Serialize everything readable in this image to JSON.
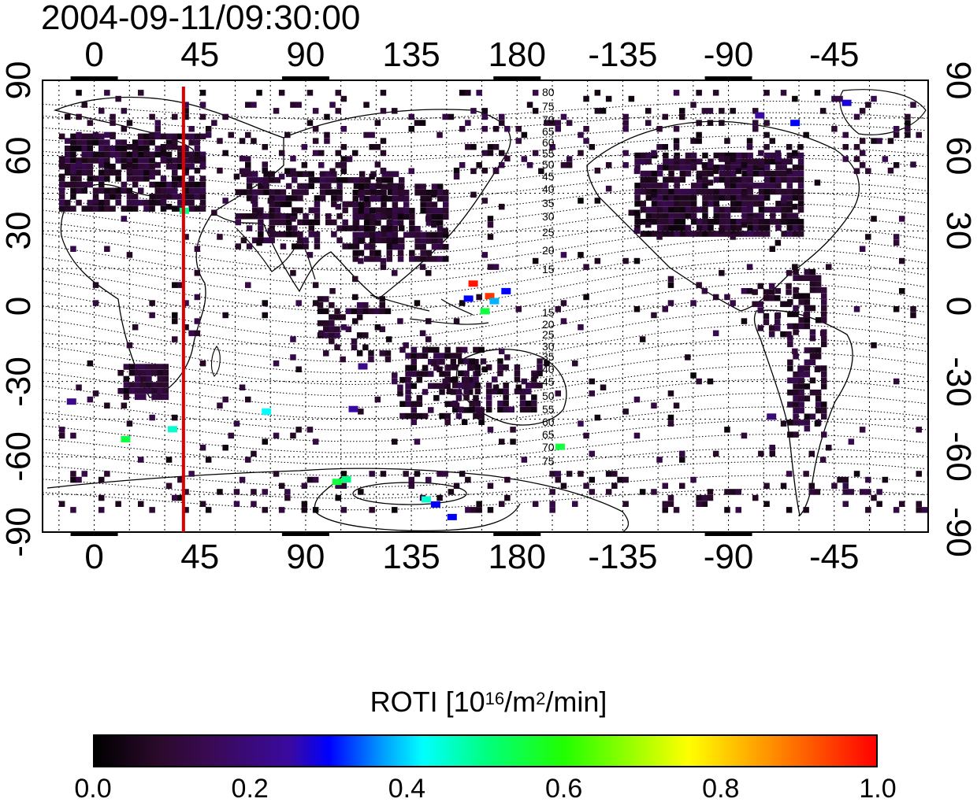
{
  "title": "2004-09-11/09:30:00",
  "chart_data": {
    "type": "heatmap",
    "title": "2004-09-11/09:30:00",
    "x_axis": {
      "label": "",
      "ticks": [
        "0",
        "45",
        "90",
        "135",
        "180",
        "-135",
        "-90",
        "-45"
      ],
      "tick_values": [
        0,
        45,
        90,
        135,
        180,
        225,
        270,
        315
      ],
      "range": [
        -22,
        355
      ]
    },
    "y_axis": {
      "label": "",
      "ticks": [
        "90",
        "60",
        "30",
        "0",
        "-30",
        "-60",
        "-90"
      ],
      "tick_values": [
        90,
        60,
        30,
        0,
        -30,
        -60,
        -90
      ],
      "range": [
        -90,
        90
      ]
    },
    "grid": true,
    "meridian_marker": {
      "longitude": 38,
      "color": "#dd0000"
    },
    "contour_labels": [
      "80",
      "75",
      "70",
      "65",
      "60",
      "55",
      "50",
      "45",
      "40",
      "35",
      "30",
      "25",
      "20",
      "15",
      "15",
      "20",
      "25",
      "30",
      "35",
      "40",
      "45",
      "50",
      "55",
      "60",
      "65",
      "70",
      "75"
    ],
    "colorbar": {
      "label": "ROTI  [10",
      "label_exp1": "16",
      "label_mid": "/m",
      "label_exp2": "2",
      "label_end": "/min]",
      "min": 0.0,
      "max": 1.0,
      "ticks": [
        "0.0",
        "0.2",
        "0.4",
        "0.6",
        "0.8",
        "1.0"
      ]
    },
    "highlight_points": [
      {
        "lon": 161,
        "lat": 9,
        "roti": 0.98
      },
      {
        "lon": 168,
        "lat": 4,
        "roti": 0.95
      },
      {
        "lon": 175,
        "lat": 6,
        "roti": 0.3
      },
      {
        "lon": 170,
        "lat": 2,
        "roti": 0.38
      },
      {
        "lon": 166,
        "lat": -2,
        "roti": 0.55
      },
      {
        "lon": 159,
        "lat": 3,
        "roti": 0.3
      },
      {
        "lon": 38,
        "lat": 38,
        "roti": 0.5
      },
      {
        "lon": -10,
        "lat": -38,
        "roti": 0.22
      },
      {
        "lon": 13,
        "lat": -53,
        "roti": 0.55
      },
      {
        "lon": 33,
        "lat": -49,
        "roti": 0.45
      },
      {
        "lon": 73,
        "lat": -42,
        "roti": 0.42
      },
      {
        "lon": 110,
        "lat": -41,
        "roti": 0.25
      },
      {
        "lon": 114,
        "lat": -24,
        "roti": 0.22
      },
      {
        "lon": 198,
        "lat": -56,
        "roti": 0.55
      },
      {
        "lon": 288,
        "lat": -44,
        "roti": 0.2
      },
      {
        "lon": 103,
        "lat": -70,
        "roti": 0.55
      },
      {
        "lon": 107,
        "lat": -69,
        "roti": 0.5
      },
      {
        "lon": 141,
        "lat": -77,
        "roti": 0.45
      },
      {
        "lon": 152,
        "lat": -84,
        "roti": 0.3
      },
      {
        "lon": 145,
        "lat": -79,
        "roti": 0.3
      },
      {
        "lon": 283,
        "lat": 76,
        "roti": 0.25
      },
      {
        "lon": 298,
        "lat": 73,
        "roti": 0.3
      },
      {
        "lon": 320,
        "lat": 81,
        "roti": 0.28
      }
    ]
  }
}
